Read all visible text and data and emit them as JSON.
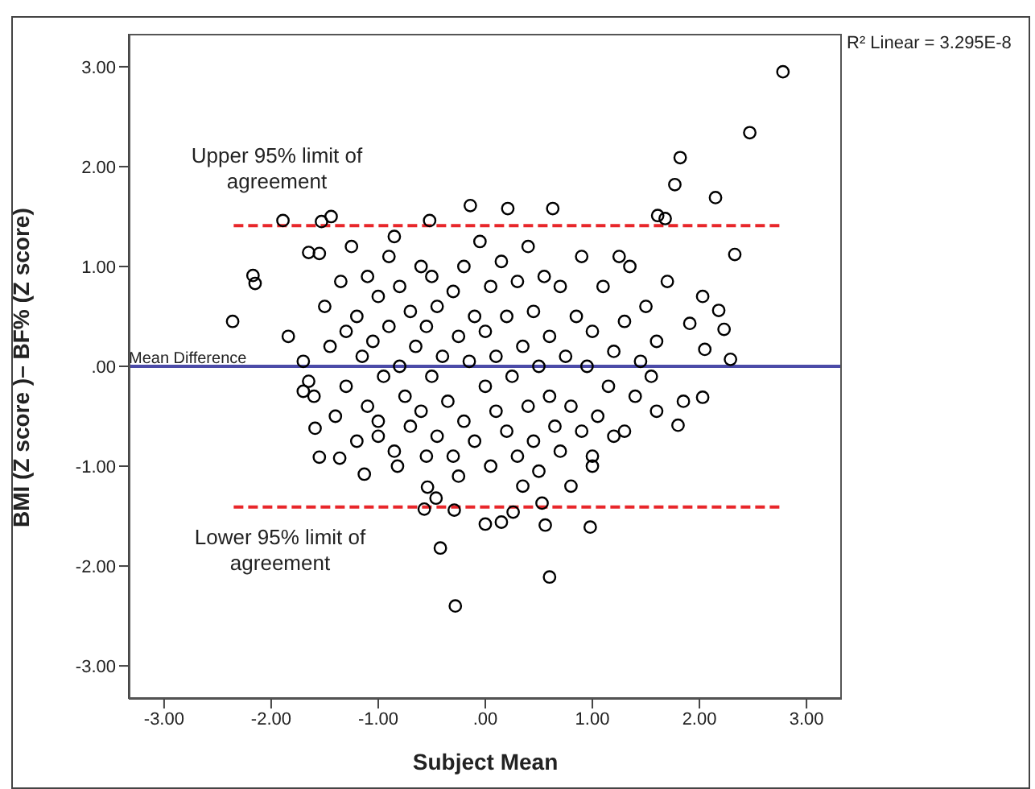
{
  "chart_data": {
    "type": "scatter",
    "xlabel": "Subject Mean",
    "ylabel": "BMI (Z score )– BF% (Z score)",
    "xlim": [
      -3.33,
      3.33
    ],
    "ylim": [
      -3.33,
      3.33
    ],
    "xticks": [
      {
        "value": -3,
        "label": "-3.00"
      },
      {
        "value": -2,
        "label": "-2.00"
      },
      {
        "value": -1,
        "label": "-1.00"
      },
      {
        "value": 0,
        "label": ".00"
      },
      {
        "value": 1,
        "label": "1.00"
      },
      {
        "value": 2,
        "label": "2.00"
      },
      {
        "value": 3,
        "label": "3.00"
      }
    ],
    "yticks": [
      {
        "value": -3,
        "label": "-3.00"
      },
      {
        "value": -2,
        "label": "-2.00"
      },
      {
        "value": -1,
        "label": "-1.00"
      },
      {
        "value": 0,
        "label": ".00"
      },
      {
        "value": 1,
        "label": "1.00"
      },
      {
        "value": 2,
        "label": "2.00"
      },
      {
        "value": 3,
        "label": "3.00"
      }
    ],
    "grid": false,
    "legend": false,
    "marker": "circle",
    "ref_lines": [
      {
        "axis": "y",
        "value": 0,
        "label": "Mean Difference",
        "color": "#4b4ba8"
      }
    ],
    "annotations": [
      "Upper 95% limit of\nagreement",
      "Lower 95% limit of\nagreement",
      "R² Linear = 3.295E-8"
    ],
    "series": [
      {
        "color": "#000000",
        "x": [
          2.78,
          2.47,
          1.82,
          1.77,
          2.15,
          2.33,
          1.61,
          1.68,
          1.7,
          2.03,
          2.18,
          2.23,
          2.29,
          2.03,
          1.85,
          1.8,
          1.91,
          2.05,
          -2.36,
          -2.17,
          -2.15,
          -1.89,
          -1.53,
          -1.44,
          -0.52,
          -0.14,
          0.21,
          0.63,
          -1.65,
          -1.55,
          -1.84,
          -0.28,
          0.6,
          -0.42,
          0.0,
          0.15,
          0.56,
          0.98,
          -0.57,
          -0.29,
          0.26,
          0.53,
          -1.13,
          -0.82,
          -1.55,
          -1.36,
          -1.59,
          0.8,
          1.0,
          -0.54,
          -0.46,
          -1.7,
          -1.65,
          -1.6,
          -1.7,
          -1.5,
          -1.45,
          -1.4,
          -1.35,
          -1.3,
          -1.3,
          -1.25,
          -1.2,
          -1.2,
          -1.15,
          -1.1,
          -1.1,
          -1.05,
          -1.0,
          -1.0,
          -0.95,
          -0.9,
          -0.9,
          -0.85,
          -0.85,
          -0.8,
          -0.8,
          -0.75,
          -0.7,
          -0.7,
          -0.65,
          -0.6,
          -0.6,
          -0.55,
          -0.55,
          -0.5,
          -0.5,
          -0.45,
          -0.45,
          -0.4,
          -0.35,
          -0.3,
          -0.3,
          -0.25,
          -0.2,
          -0.2,
          -0.15,
          -0.1,
          -0.1,
          -0.05,
          0.0,
          0.0,
          0.05,
          0.05,
          0.1,
          0.1,
          0.15,
          0.2,
          0.2,
          0.25,
          0.3,
          0.3,
          0.35,
          0.4,
          0.4,
          0.45,
          0.45,
          0.5,
          0.5,
          0.55,
          0.6,
          0.6,
          0.65,
          0.7,
          0.7,
          0.75,
          0.8,
          0.85,
          0.9,
          0.9,
          0.95,
          1.0,
          1.05,
          1.1,
          1.15,
          1.2,
          1.25,
          1.3,
          1.3,
          1.35,
          1.4,
          1.45,
          1.5,
          1.55,
          1.6,
          1.6,
          1.2,
          1.0,
          0.35,
          -0.25,
          -1.0
        ],
        "values": [
          2.95,
          2.34,
          2.09,
          1.82,
          1.69,
          1.12,
          1.51,
          1.48,
          0.85,
          0.7,
          0.56,
          0.37,
          0.07,
          -0.31,
          -0.35,
          -0.59,
          0.43,
          0.17,
          0.45,
          0.91,
          0.83,
          1.46,
          1.45,
          1.5,
          1.46,
          1.61,
          1.58,
          1.58,
          1.14,
          1.13,
          0.3,
          -2.4,
          -2.11,
          -1.82,
          -1.58,
          -1.56,
          -1.59,
          -1.61,
          -1.43,
          -1.44,
          -1.46,
          -1.37,
          -1.08,
          -1.0,
          -0.91,
          -0.92,
          -0.62,
          -1.2,
          -1.0,
          -1.21,
          -1.32,
          0.05,
          -0.15,
          -0.3,
          -0.25,
          0.6,
          0.2,
          -0.5,
          0.85,
          0.35,
          -0.2,
          1.2,
          0.5,
          -0.75,
          0.1,
          0.9,
          -0.4,
          0.25,
          0.7,
          -0.55,
          -0.1,
          1.1,
          0.4,
          -0.85,
          1.3,
          0.0,
          0.8,
          -0.3,
          0.55,
          -0.6,
          0.2,
          1.0,
          -0.45,
          0.4,
          -0.9,
          0.9,
          -0.1,
          0.6,
          -0.7,
          0.1,
          -0.35,
          0.75,
          -0.9,
          0.3,
          -0.55,
          1.0,
          0.05,
          -0.75,
          0.5,
          1.25,
          -0.2,
          0.35,
          0.8,
          -1.0,
          0.1,
          -0.45,
          1.05,
          0.5,
          -0.65,
          -0.1,
          0.85,
          -0.9,
          0.2,
          -0.4,
          1.2,
          0.55,
          -0.75,
          0.0,
          -1.05,
          0.9,
          -0.3,
          0.3,
          -0.6,
          0.8,
          -0.85,
          0.1,
          -0.4,
          0.5,
          -0.65,
          1.1,
          0.0,
          0.35,
          -0.5,
          0.8,
          -0.2,
          0.15,
          1.1,
          -0.65,
          0.45,
          1.0,
          -0.3,
          0.05,
          0.6,
          -0.1,
          0.25,
          -0.45,
          -0.7,
          -0.9,
          -1.2,
          -1.1,
          -0.7
        ]
      },
      {
        "type": "line",
        "marker": "none",
        "color": "#e8262a",
        "line_style": "dashed",
        "x": [
          -2.35,
          2.78
        ],
        "values": [
          1.41,
          1.41
        ]
      },
      {
        "type": "line",
        "marker": "none",
        "color": "#e8262a",
        "line_style": "dashed",
        "x": [
          -2.35,
          2.78
        ],
        "values": [
          -1.41,
          -1.41
        ]
      }
    ]
  }
}
